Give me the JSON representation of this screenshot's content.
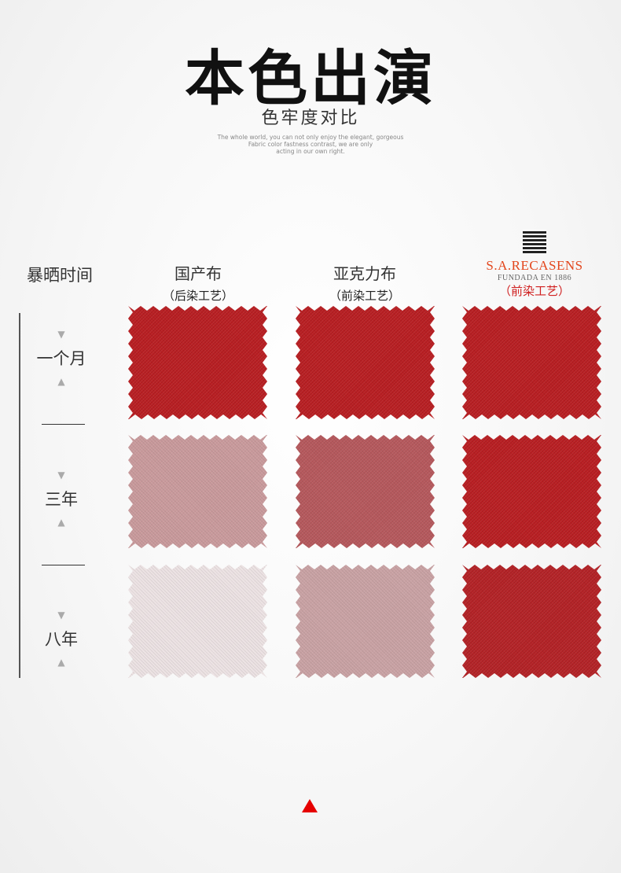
{
  "header": {
    "title": "本色出演",
    "subtitle": "色牢度对比",
    "english": [
      "The whole world, you can not only enjoy the elegant, gorgeous",
      "Fabric color fastness contrast, we are only",
      "acting in our own right."
    ]
  },
  "time_header": "暴晒时间",
  "columns": [
    {
      "name": "国产布",
      "process": "（后染工艺）"
    },
    {
      "name": "亚克力布",
      "process": "（前染工艺）"
    },
    {
      "brand": "S.A.RECASENS",
      "brand_sub": "FUNDADA EN 1886",
      "process": "（前染工艺）"
    }
  ],
  "rows": [
    {
      "label": "一个月",
      "colors": [
        "#b81e22",
        "#b81e22",
        "#b81e22"
      ]
    },
    {
      "label": "三年",
      "colors": [
        "#c99a9c",
        "#b5585c",
        "#b81e22"
      ]
    },
    {
      "label": "八年",
      "colors": [
        "#ece2e3",
        "#c9a2a4",
        "#b32226"
      ]
    }
  ],
  "colors": {
    "accent": "#e60000",
    "brand": "#e3461c"
  },
  "icons": {
    "row_markers": "triangle-icon",
    "footer": "triangle-up-icon"
  }
}
